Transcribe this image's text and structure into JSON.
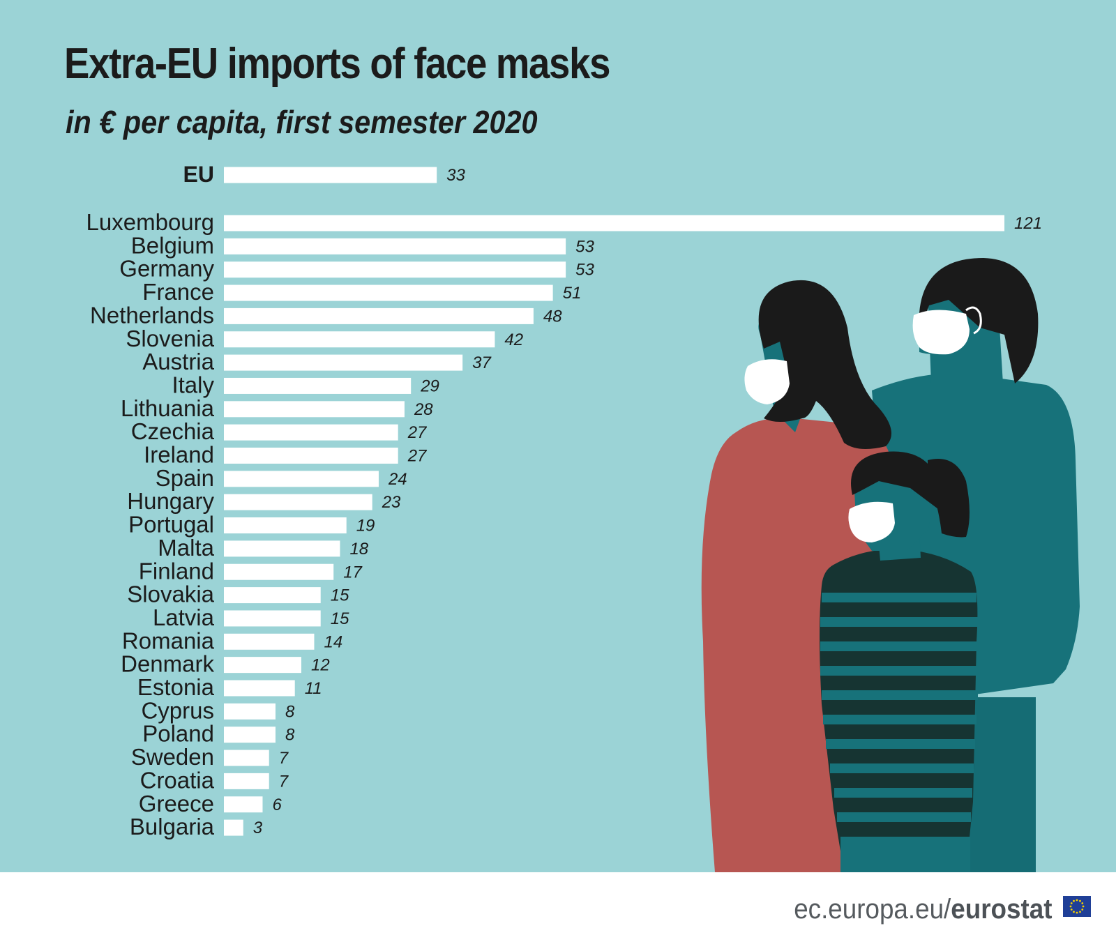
{
  "header": {
    "title": "Extra-EU imports of face masks",
    "subtitle": "in € per capita, first semester 2020"
  },
  "footer": {
    "site": "ec.europa.eu/",
    "brand": "eurostat"
  },
  "colors": {
    "background": "#9bd3d6",
    "bar": "#ffffff",
    "text": "#1b1b1b",
    "figure_woman": "#b75652",
    "figure_man": "#17727a",
    "hair": "#1a1a1a"
  },
  "chart_data": {
    "type": "bar",
    "orientation": "horizontal",
    "highlight": {
      "category": "EU",
      "value": 33
    },
    "categories": [
      "Luxembourg",
      "Belgium",
      "Germany",
      "France",
      "Netherlands",
      "Slovenia",
      "Austria",
      "Italy",
      "Lithuania",
      "Czechia",
      "Ireland",
      "Spain",
      "Hungary",
      "Portugal",
      "Malta",
      "Finland",
      "Slovakia",
      "Latvia",
      "Romania",
      "Denmark",
      "Estonia",
      "Cyprus",
      "Poland",
      "Sweden",
      "Croatia",
      "Greece",
      "Bulgaria"
    ],
    "values": [
      121,
      53,
      53,
      51,
      48,
      42,
      37,
      29,
      28,
      27,
      27,
      24,
      23,
      19,
      18,
      17,
      15,
      15,
      14,
      12,
      11,
      8,
      8,
      7,
      7,
      6,
      3
    ],
    "data_labels": true,
    "grid": false,
    "legend": "none",
    "xlabel": "",
    "ylabel": ""
  }
}
